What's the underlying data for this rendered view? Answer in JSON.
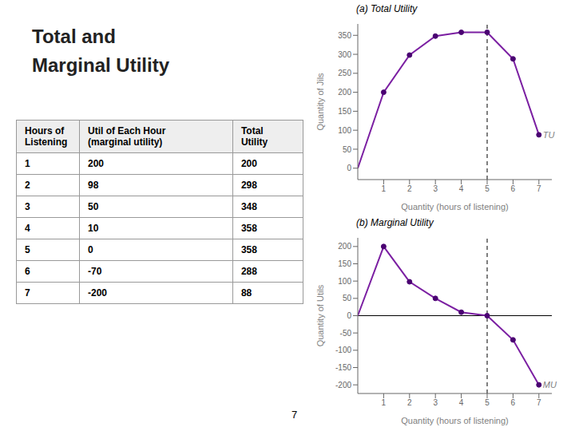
{
  "chart_data": [
    {
      "type": "table",
      "title": "Total and\nMarginal Utility",
      "xlabel": "Hours of\nListening",
      "categories": [
        "1",
        "2",
        "3",
        "4",
        "5",
        "6",
        "7"
      ],
      "series": [
        {
          "name": "Util of Each Hour\n(marginal utility)",
          "values": [
            200,
            98,
            50,
            10,
            0,
            -70,
            -200
          ]
        },
        {
          "name": "Total\nUtility",
          "values": [
            200,
            298,
            348,
            358,
            358,
            288,
            88
          ]
        }
      ],
      "annotations": [
        {
          "text": "7"
        }
      ]
    },
    {
      "type": "line",
      "title": "(a) Total Utility",
      "xlabel": "Quantity (hours of listening)",
      "ylabel": "Quantity of Jils",
      "x": [
        0,
        1,
        2,
        3,
        4,
        5,
        6,
        7
      ],
      "series": [
        {
          "type": "line",
          "color": "#7B1FA2",
          "values": [
            0,
            200,
            298,
            348,
            358,
            358,
            288,
            88
          ]
        },
        {
          "type": "scatter",
          "color": "#4A0072",
          "marker": "o",
          "values": [
            null,
            200,
            298,
            348,
            358,
            358,
            288,
            88
          ]
        }
      ],
      "xlim": [
        0,
        7.5
      ],
      "xticks": [
        1,
        2,
        3,
        4,
        5,
        6,
        7
      ],
      "ylim": [
        -30,
        380
      ],
      "yticks": [
        0,
        50,
        100,
        150,
        200,
        250,
        300,
        350
      ],
      "vlines": [
        5
      ],
      "annotations": [
        {
          "text": "TU"
        }
      ],
      "grid": false
    },
    {
      "type": "line",
      "title": "(b) Marginal Utility",
      "xlabel": "Quantity (hours of listening)",
      "ylabel": "Quantity of Utils",
      "x": [
        0,
        1,
        2,
        3,
        4,
        5,
        6,
        7
      ],
      "series": [
        {
          "type": "line",
          "color": "#7B1FA2",
          "values": [
            0,
            200,
            98,
            50,
            10,
            0,
            -70,
            -200
          ]
        },
        {
          "type": "scatter",
          "color": "#4A0072",
          "marker": "o",
          "values": [
            null,
            200,
            98,
            50,
            10,
            0,
            -70,
            -200
          ]
        }
      ],
      "xlim": [
        0,
        7.5
      ],
      "xticks": [
        1,
        2,
        3,
        4,
        5,
        6,
        7
      ],
      "ylim": [
        -225,
        225
      ],
      "yticks": [
        -200,
        -150,
        -100,
        -50,
        0,
        50,
        100,
        150,
        200
      ],
      "vlines": [
        5
      ],
      "hlines": [
        0
      ],
      "annotations": [
        {
          "text": "MU"
        }
      ],
      "grid": false
    }
  ]
}
